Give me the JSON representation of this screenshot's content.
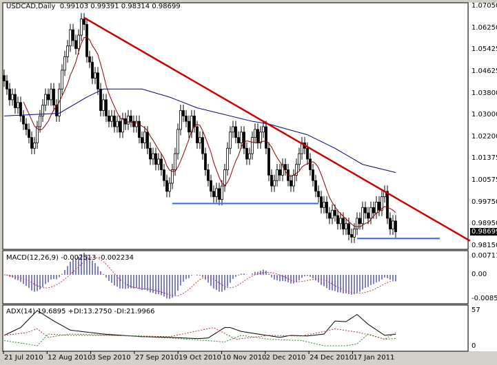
{
  "header": {
    "symbol": "USDCAD,Daily",
    "ohlc": "0.99103 0.99391 0.98314 0.98699"
  },
  "macd_label": "MACD(12,26,9) -0.002513 -0.002234",
  "adx_label": "ADX(14) 19.6895 +DI:13.2750 -DI:21.9966",
  "price_axis": [
    "1.07050",
    "1.06250",
    "1.05425",
    "1.04625",
    "1.03800",
    "1.03000",
    "1.02200",
    "1.01375",
    "1.00575",
    "0.99750",
    "0.98950",
    "0.98150"
  ],
  "current_price": "0.98699",
  "macd_axis": [
    "0.007113",
    "0.00",
    "-0.00852"
  ],
  "adx_axis": [
    "57",
    "0"
  ],
  "date_axis": [
    "21 Jul 2010",
    "12 Aug 2010",
    "3 Sep 2010",
    "27 Sep 2010",
    "19 Oct 2010",
    "10 Nov 2010",
    "2 Dec 2010",
    "24 Dec 2010",
    "17 Jan 2011"
  ],
  "colors": {
    "bg": "#ffffff",
    "frame": "#d4d0c8",
    "candle": "#000000",
    "ma_fast": "#8b0000",
    "ma_slow": "#000080",
    "trend_line": "#cc0000",
    "support_line": "#3366ff",
    "macd_hist": "#000080",
    "macd_signal": "#cc3333",
    "adx": "#000000",
    "plus_di": "#228822",
    "minus_di": "#aa3333"
  },
  "chart_data": {
    "type": "candlestick",
    "title": "USDCAD,Daily",
    "ylim": [
      0.9815,
      1.0705
    ],
    "closes": [
      1.043,
      1.04,
      1.036,
      1.038,
      1.033,
      1.035,
      1.03,
      1.027,
      1.025,
      1.022,
      1.018,
      1.02,
      1.026,
      1.03,
      1.034,
      1.038,
      1.036,
      1.04,
      1.034,
      1.03,
      1.04,
      1.047,
      1.052,
      1.056,
      1.062,
      1.058,
      1.055,
      1.06,
      1.066,
      1.064,
      1.052,
      1.05,
      1.044,
      1.046,
      1.04,
      1.032,
      1.036,
      1.03,
      1.028,
      1.03,
      1.026,
      1.028,
      1.024,
      1.029,
      1.027,
      1.03,
      1.028,
      1.026,
      1.028,
      1.022,
      1.02,
      1.024,
      1.018,
      1.014,
      1.016,
      1.012,
      1.014,
      1.01,
      1.006,
      1.002,
      1.005,
      1.01,
      1.016,
      1.025,
      1.032,
      1.03,
      1.028,
      1.024,
      1.03,
      1.026,
      1.02,
      1.022,
      1.016,
      1.01,
      1.006,
      1.002,
      1.0,
      1.003,
      0.999,
      1.004,
      1.01,
      1.018,
      1.024,
      1.026,
      1.022,
      1.02,
      1.024,
      1.018,
      1.014,
      1.016,
      1.022,
      1.025,
      1.02,
      1.024,
      1.026,
      1.018,
      1.008,
      1.004,
      1.006,
      1.01,
      1.008,
      1.012,
      1.01,
      1.006,
      1.004,
      1.008,
      1.012,
      1.016,
      1.02,
      1.018,
      1.014,
      1.01,
      1.006,
      1.002,
      1.0,
      0.996,
      0.998,
      0.994,
      0.992,
      0.995,
      0.993,
      0.99,
      0.992,
      0.988,
      0.99,
      0.986,
      0.985,
      0.988,
      0.992,
      0.99,
      0.996,
      0.994,
      0.992,
      0.996,
      0.994,
      0.998,
      0.995,
      1.0,
      1.002,
      0.992,
      0.988,
      0.991,
      0.98699
    ],
    "ma_slow": [
      [
        0,
        1.03
      ],
      [
        20,
        1.031
      ],
      [
        30,
        1.037
      ],
      [
        36,
        1.04
      ],
      [
        50,
        1.04
      ],
      [
        60,
        1.037
      ],
      [
        70,
        1.033
      ],
      [
        90,
        1.028
      ],
      [
        96,
        1.027
      ],
      [
        110,
        1.023
      ],
      [
        120,
        1.018
      ],
      [
        130,
        1.012
      ],
      [
        142,
        1.009
      ]
    ],
    "trend_line": [
      [
        29,
        1.0665
      ],
      [
        169,
        0.9836
      ]
    ],
    "support_lines": [
      [
        [
          61,
          0.9975
        ],
        [
          114,
          0.9975
        ]
      ],
      [
        [
          128,
          0.9845
        ],
        [
          158,
          0.9845
        ]
      ]
    ],
    "macd_range": [
      -0.00852,
      0.007113
    ],
    "adx_range": [
      0,
      57
    ],
    "adx": [
      [
        0,
        18
      ],
      [
        6,
        30
      ],
      [
        12,
        56
      ],
      [
        18,
        40
      ],
      [
        24,
        26
      ],
      [
        36,
        20
      ],
      [
        50,
        16
      ],
      [
        60,
        15
      ],
      [
        70,
        13
      ],
      [
        74,
        14
      ],
      [
        80,
        30
      ],
      [
        82,
        30
      ],
      [
        86,
        24
      ],
      [
        92,
        20
      ],
      [
        100,
        15
      ],
      [
        104,
        18
      ],
      [
        110,
        17
      ],
      [
        116,
        20
      ],
      [
        120,
        40
      ],
      [
        124,
        39
      ],
      [
        128,
        50
      ],
      [
        132,
        35
      ],
      [
        138,
        18
      ],
      [
        142,
        19.69
      ]
    ],
    "plus_di": [
      [
        0,
        10
      ],
      [
        8,
        5
      ],
      [
        12,
        2
      ],
      [
        16,
        20
      ],
      [
        24,
        18
      ],
      [
        40,
        18
      ],
      [
        60,
        14
      ],
      [
        80,
        8
      ],
      [
        86,
        18
      ],
      [
        96,
        12
      ],
      [
        108,
        10
      ],
      [
        116,
        2
      ],
      [
        124,
        2
      ],
      [
        128,
        5
      ],
      [
        132,
        20
      ],
      [
        138,
        12
      ],
      [
        142,
        13.28
      ]
    ],
    "minus_di": [
      [
        0,
        18
      ],
      [
        8,
        22
      ],
      [
        12,
        28
      ],
      [
        16,
        15
      ],
      [
        24,
        20
      ],
      [
        40,
        18
      ],
      [
        60,
        16
      ],
      [
        76,
        30
      ],
      [
        84,
        12
      ],
      [
        96,
        18
      ],
      [
        108,
        17
      ],
      [
        116,
        24
      ],
      [
        120,
        28
      ],
      [
        128,
        23
      ],
      [
        134,
        17
      ],
      [
        138,
        12
      ],
      [
        142,
        22.0
      ]
    ]
  }
}
